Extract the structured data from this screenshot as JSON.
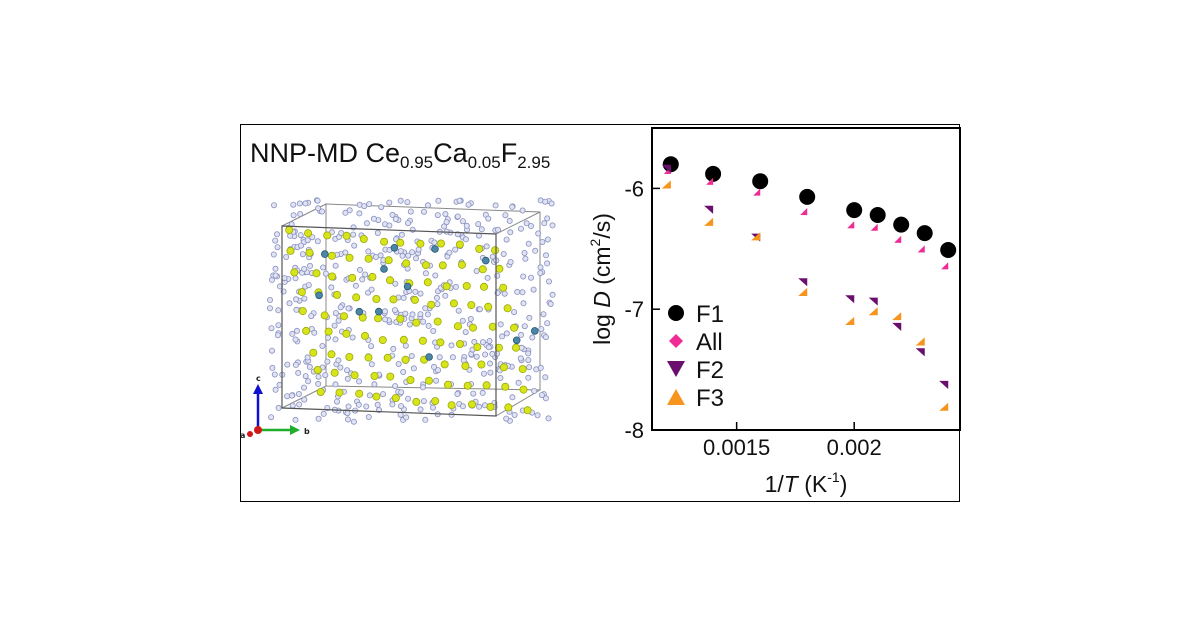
{
  "figure": {
    "title": {
      "prefix": "NNP-MD Ce",
      "sub1": "0.95",
      "mid": "Ca",
      "sub2": "0.05",
      "suffix": "F",
      "sub3": "2.95"
    },
    "axes_indicator": {
      "a": "a",
      "b": "b",
      "c": "c"
    }
  },
  "colors": {
    "F1": "#000000",
    "All": "#ef2b95",
    "F2": "#6a0f6d",
    "F3": "#f7941d"
  },
  "chart_data": {
    "type": "scatter",
    "xlabel": {
      "prefix": "1/",
      "italic": "T",
      "unit_open": " (K",
      "sup": "-1",
      "unit_close": ")"
    },
    "ylabel": {
      "prefix": "log ",
      "italic": "D",
      "unit_open": " (cm",
      "sup": "2",
      "unit_close": "/s)"
    },
    "xlim": [
      0.00114,
      0.00245
    ],
    "ylim": [
      -8.0,
      -5.5
    ],
    "xticks": [
      0.0015,
      0.002
    ],
    "xtick_labels": [
      "0.0015",
      "0.002"
    ],
    "yticks": [
      -6,
      -7,
      -8
    ],
    "ytick_labels": [
      "-6",
      "-7",
      "-8"
    ],
    "x": [
      0.00122,
      0.0014,
      0.0016,
      0.0018,
      0.002,
      0.0021,
      0.0022,
      0.0023,
      0.0024
    ],
    "series": [
      {
        "name": "F1",
        "marker": "circle",
        "values": [
          -5.8,
          -5.88,
          -5.94,
          -6.07,
          -6.18,
          -6.22,
          -6.3,
          -6.37,
          -6.51
        ]
      },
      {
        "name": "All",
        "marker": "diamond",
        "values": [
          -5.88,
          -5.97,
          -6.06,
          -6.22,
          -6.33,
          -6.35,
          -6.45,
          -6.53,
          -6.67
        ]
      },
      {
        "name": "F2",
        "marker": "triangle-down",
        "values": [
          -5.87,
          -6.21,
          -6.44,
          -6.81,
          -6.95,
          -6.97,
          -7.18,
          -7.39,
          -7.66
        ]
      },
      {
        "name": "F3",
        "marker": "triangle-up",
        "values": [
          -6.0,
          -6.31,
          -6.43,
          -6.89,
          -7.13,
          -7.05,
          -7.09,
          -7.3,
          -7.84
        ]
      }
    ],
    "legend": [
      "F1",
      "All",
      "F2",
      "F3"
    ],
    "legend_position": "bottom-left"
  }
}
